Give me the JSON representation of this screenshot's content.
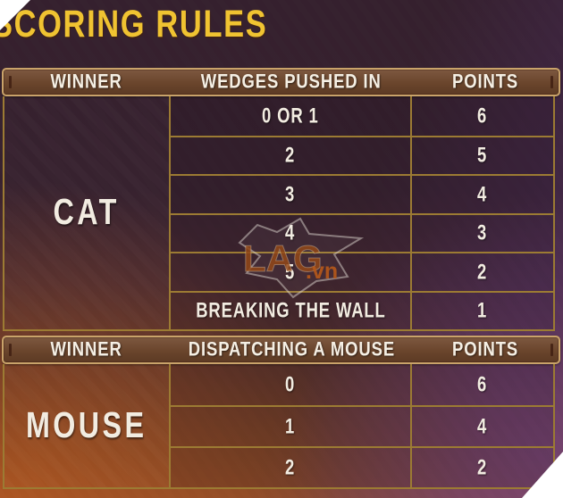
{
  "title": "SCORING RULES",
  "table": {
    "sections": [
      {
        "winner": "CAT",
        "headers": [
          "WINNER",
          "WEDGES PUSHED IN",
          "POINTS"
        ],
        "rows": [
          {
            "criteria": "0 OR 1",
            "points": "6"
          },
          {
            "criteria": "2",
            "points": "5"
          },
          {
            "criteria": "3",
            "points": "4"
          },
          {
            "criteria": "4",
            "points": "3"
          },
          {
            "criteria": "5",
            "points": "2"
          },
          {
            "criteria": "BREAKING THE WALL",
            "points": "1"
          }
        ]
      },
      {
        "winner": "MOUSE",
        "headers": [
          "WINNER",
          "DISPATCHING A MOUSE",
          "POINTS"
        ],
        "rows": [
          {
            "criteria": "0",
            "points": "6"
          },
          {
            "criteria": "1",
            "points": "4"
          },
          {
            "criteria": "2",
            "points": "2"
          }
        ]
      }
    ]
  },
  "watermark": {
    "text": "LAG",
    "suffix": ".vn"
  },
  "colors": {
    "title_yellow": "#f0c331",
    "header_bar_brown": "#6a452c",
    "header_border_tan": "#c9a36a",
    "grid_line_gold": "#9c7b33",
    "cell_text": "#f2ece1",
    "watermark_orange": "#b05a1c",
    "bg_top_maroon": "#35202e",
    "bg_bottom_orange": "#8a4a28",
    "bg_purple_right": "#4a2c55",
    "corner_white": "#ffffff"
  }
}
